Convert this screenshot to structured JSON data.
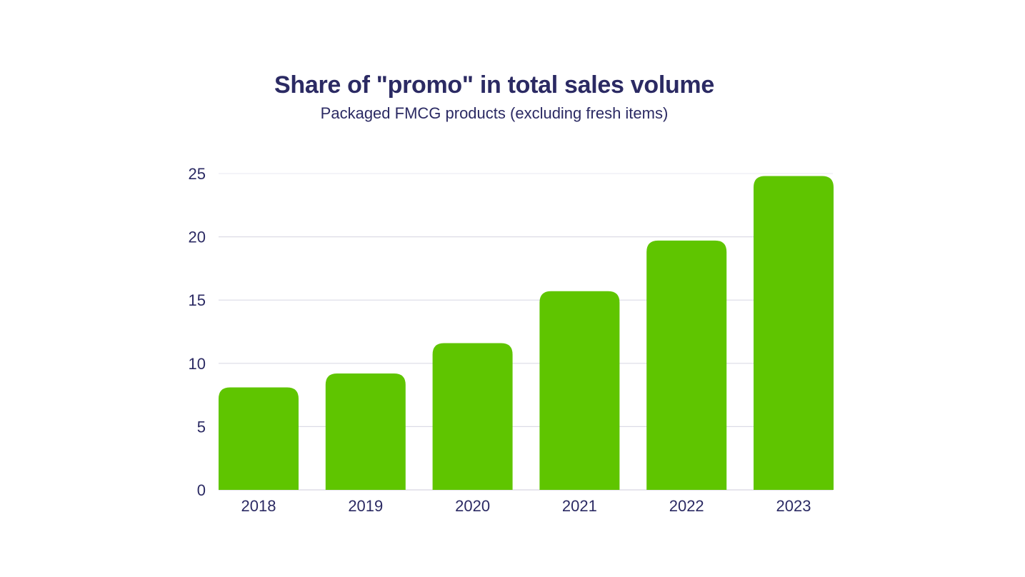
{
  "chart_data": {
    "type": "bar",
    "title": "Share of \"promo\" in total sales volume",
    "subtitle": "Packaged FMCG products (excluding fresh items)",
    "xlabel": "",
    "ylabel": "",
    "categories": [
      "2018",
      "2019",
      "2020",
      "2021",
      "2022",
      "2023"
    ],
    "values": [
      8.1,
      9.2,
      11.6,
      15.7,
      19.7,
      24.8
    ],
    "ylim": [
      0,
      25
    ],
    "yticks": [
      0,
      5,
      10,
      15,
      20,
      25
    ],
    "grid": true,
    "legend": "none",
    "colors": {
      "bar": "#5fc500",
      "grid": "#dcdbe6",
      "text": "#2b2a63"
    }
  }
}
